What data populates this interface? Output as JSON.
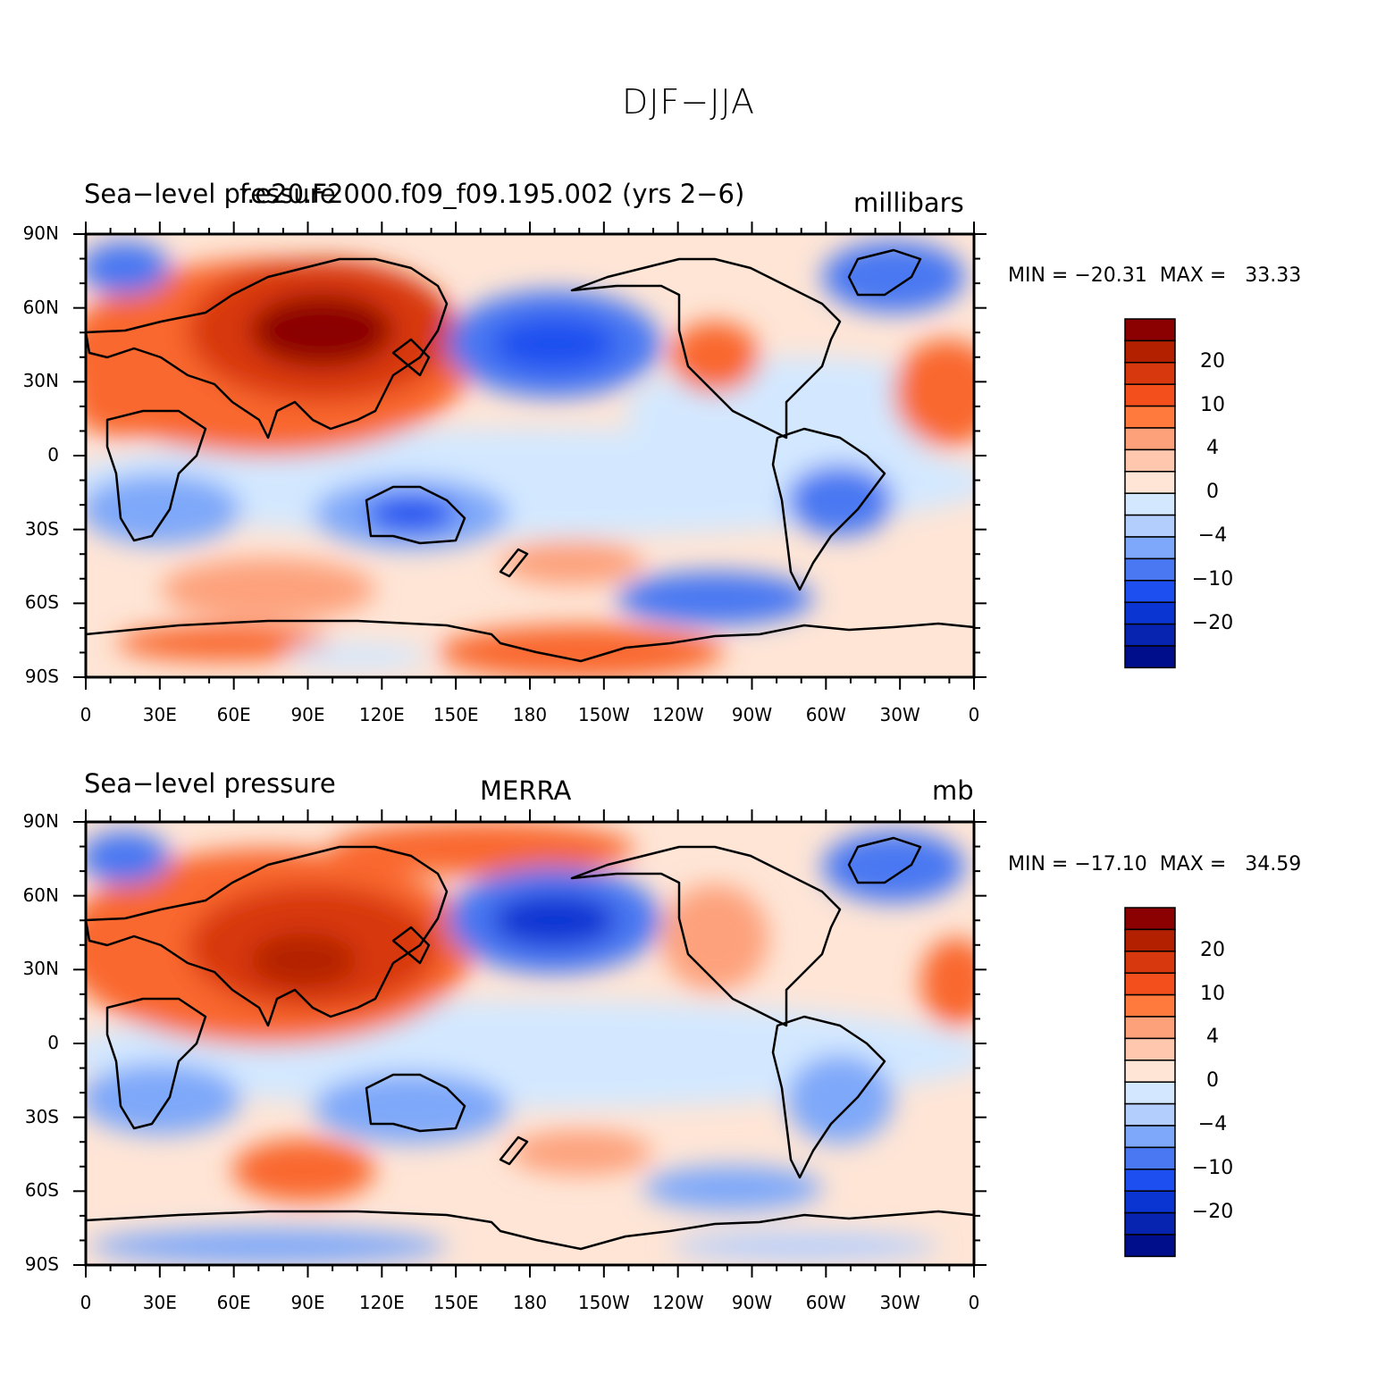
{
  "title": "DJF−JJA",
  "panels": [
    {
      "left_label": "Sea−level pressure",
      "center_label": "f.e20.F2000.f09_f09.195.002 (yrs 2−6)",
      "right_label": "millibars",
      "min_max": "MIN = −20.31  MAX =   33.33"
    },
    {
      "left_label": "Sea−level pressure",
      "center_label": "MERRA",
      "right_label": "mb",
      "min_max": "MIN = −17.10  MAX =   34.59"
    }
  ],
  "lat_ticks": [
    "90N",
    "60N",
    "30N",
    "0",
    "30S",
    "60S",
    "90S"
  ],
  "lon_ticks": [
    "0",
    "30E",
    "60E",
    "90E",
    "120E",
    "150E",
    "180",
    "150W",
    "120W",
    "90W",
    "60W",
    "30W",
    "0"
  ],
  "colorbar": {
    "labels": [
      "20",
      "10",
      "4",
      "0",
      "−4",
      "−10",
      "−20"
    ],
    "colors": [
      "#8b0000",
      "#b22000",
      "#d8380e",
      "#f24f1c",
      "#ff7a3c",
      "#fda17b",
      "#fec7ae",
      "#fee5d6",
      "#d3e8ff",
      "#b3cefd",
      "#7ea8f9",
      "#4a78f2",
      "#1d4ff0",
      "#0a35d3",
      "#0624b0",
      "#000e8c"
    ]
  },
  "colors": {
    "strong_positive": "#c12a06",
    "positive": "#f9672d",
    "weak_positive": "#fdc3a6",
    "near_zero": "#fee5d6",
    "weak_negative": "#d3e8ff",
    "negative": "#7ea8f9",
    "strong_negative": "#1d4ff0"
  }
}
